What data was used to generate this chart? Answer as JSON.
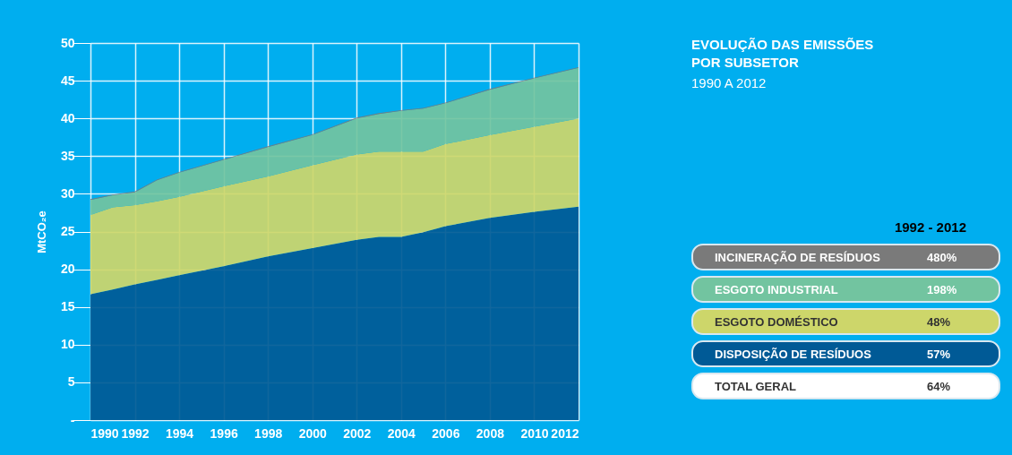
{
  "chart_data": {
    "type": "area",
    "stacked": true,
    "title": "EVOLUÇÃO DAS EMISSÕES POR SUBSETOR",
    "subtitle": "1990 A 2012",
    "ylabel": "MtCO₂e",
    "legend_title": "1992  - 2012",
    "x": [
      1990,
      1991,
      1992,
      1993,
      1994,
      1996,
      1998,
      2000,
      2002,
      2003,
      2004,
      2005,
      2006,
      2008,
      2010,
      2012
    ],
    "series": [
      {
        "name": "DISPOSIÇÃO DE RESÍDUOS",
        "color": "#005a96",
        "values": [
          16.7,
          17.3,
          18.0,
          18.6,
          19.2,
          20.4,
          21.7,
          22.8,
          23.9,
          24.3,
          24.3,
          24.9,
          25.7,
          26.8,
          27.6,
          28.3
        ]
      },
      {
        "name": "ESGOTO DOMÉSTICO",
        "color": "#cdd66a",
        "values": [
          10.5,
          10.9,
          10.5,
          10.4,
          10.4,
          10.6,
          10.6,
          11.0,
          11.3,
          11.3,
          11.3,
          10.7,
          10.9,
          11.0,
          11.3,
          11.7
        ]
      },
      {
        "name": "ESGOTO INDUSTRIAL",
        "color": "#72c4a0",
        "values": [
          2.0,
          1.6,
          1.7,
          2.8,
          3.2,
          3.5,
          3.9,
          4.0,
          4.8,
          5.0,
          5.4,
          5.7,
          5.4,
          6.0,
          6.4,
          6.7
        ]
      },
      {
        "name": "INCINERAÇÃO DE RESÍDUOS",
        "color": "#7a7a7a",
        "values": [
          0.1,
          0.1,
          0.1,
          0.1,
          0.1,
          0.1,
          0.1,
          0.1,
          0.1,
          0.1,
          0.1,
          0.1,
          0.1,
          0.1,
          0.1,
          0.1
        ]
      }
    ],
    "annotations": [
      "480%",
      "198%",
      "48%",
      "57%",
      "TOTAL GERAL",
      "64%"
    ],
    "xlim": [
      1990,
      2012
    ],
    "xticks": [
      1990,
      1992,
      1994,
      1996,
      1998,
      2000,
      2002,
      2004,
      2006,
      2008,
      2010,
      2012
    ],
    "ylim": [
      0,
      50
    ],
    "yticks": [
      {
        "value": 0,
        "label": "-"
      },
      5,
      10,
      15,
      20,
      25,
      30,
      35,
      40,
      45,
      50
    ],
    "grid": true,
    "legend": "right"
  }
}
